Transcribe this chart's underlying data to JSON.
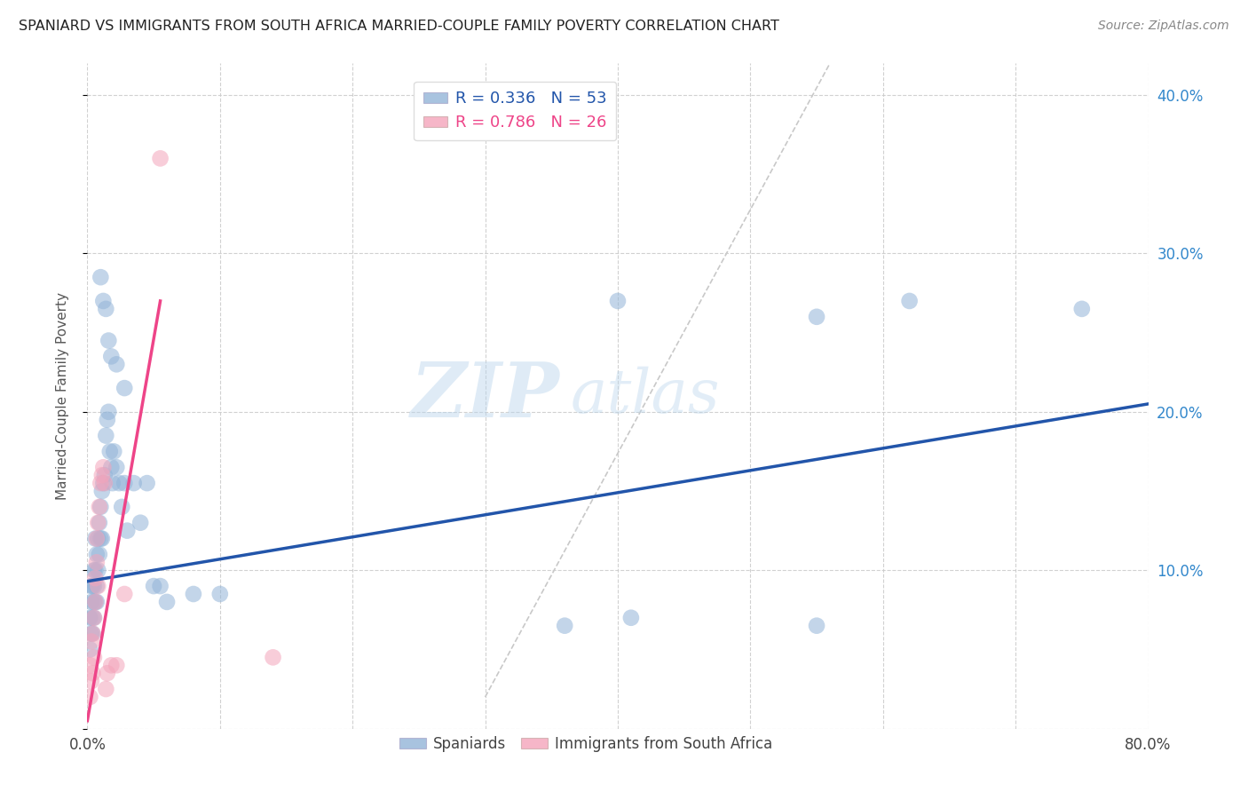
{
  "title": "SPANIARD VS IMMIGRANTS FROM SOUTH AFRICA MARRIED-COUPLE FAMILY POVERTY CORRELATION CHART",
  "source": "Source: ZipAtlas.com",
  "ylabel_left": "Married-Couple Family Poverty",
  "watermark_zip": "ZIP",
  "watermark_atlas": "atlas",
  "xmin": 0.0,
  "xmax": 0.8,
  "ymin": 0.0,
  "ymax": 0.42,
  "blue_R": 0.336,
  "blue_N": 53,
  "pink_R": 0.786,
  "pink_N": 26,
  "blue_color": "#92B4D8",
  "pink_color": "#F4A4BB",
  "blue_line_color": "#2255AA",
  "pink_line_color": "#EE4488",
  "legend_label_blue": "Spaniards",
  "legend_label_pink": "Immigrants from South Africa",
  "blue_scatter_x": [
    0.002,
    0.002,
    0.003,
    0.003,
    0.003,
    0.004,
    0.004,
    0.004,
    0.005,
    0.005,
    0.005,
    0.005,
    0.006,
    0.006,
    0.006,
    0.007,
    0.007,
    0.007,
    0.008,
    0.008,
    0.009,
    0.009,
    0.01,
    0.01,
    0.011,
    0.011,
    0.012,
    0.013,
    0.014,
    0.015,
    0.016,
    0.017,
    0.018,
    0.019,
    0.02,
    0.022,
    0.024,
    0.026,
    0.028,
    0.03,
    0.035,
    0.04,
    0.045,
    0.05,
    0.055,
    0.06,
    0.08,
    0.1,
    0.36,
    0.41,
    0.55,
    0.62,
    0.75
  ],
  "blue_scatter_y": [
    0.07,
    0.05,
    0.08,
    0.06,
    0.09,
    0.07,
    0.09,
    0.06,
    0.08,
    0.1,
    0.07,
    0.09,
    0.08,
    0.1,
    0.12,
    0.09,
    0.11,
    0.08,
    0.1,
    0.12,
    0.11,
    0.13,
    0.12,
    0.14,
    0.12,
    0.15,
    0.155,
    0.16,
    0.185,
    0.195,
    0.2,
    0.175,
    0.165,
    0.155,
    0.175,
    0.165,
    0.155,
    0.14,
    0.155,
    0.125,
    0.155,
    0.13,
    0.155,
    0.09,
    0.09,
    0.08,
    0.085,
    0.085,
    0.065,
    0.07,
    0.065,
    0.27,
    0.265
  ],
  "blue_scatter_x_high": [
    0.01,
    0.012,
    0.014,
    0.016,
    0.018,
    0.022,
    0.028,
    0.4,
    0.55
  ],
  "blue_scatter_y_high": [
    0.285,
    0.27,
    0.265,
    0.245,
    0.235,
    0.23,
    0.215,
    0.27,
    0.26
  ],
  "pink_scatter_x": [
    0.002,
    0.002,
    0.003,
    0.003,
    0.004,
    0.004,
    0.005,
    0.005,
    0.006,
    0.006,
    0.007,
    0.007,
    0.008,
    0.008,
    0.009,
    0.01,
    0.011,
    0.012,
    0.013,
    0.014,
    0.015,
    0.018,
    0.022,
    0.028,
    0.055,
    0.14
  ],
  "pink_scatter_y": [
    0.02,
    0.04,
    0.03,
    0.055,
    0.035,
    0.06,
    0.045,
    0.07,
    0.08,
    0.095,
    0.105,
    0.12,
    0.13,
    0.09,
    0.14,
    0.155,
    0.16,
    0.165,
    0.155,
    0.025,
    0.035,
    0.04,
    0.04,
    0.085,
    0.36,
    0.045
  ],
  "blue_line_x0": 0.0,
  "blue_line_x1": 0.8,
  "blue_line_y0": 0.093,
  "blue_line_y1": 0.205,
  "pink_line_x0": 0.0,
  "pink_line_x1": 0.055,
  "pink_line_y0": 0.005,
  "pink_line_y1": 0.27,
  "diag_line_x": [
    0.3,
    0.56
  ],
  "diag_line_y": [
    0.02,
    0.42
  ]
}
